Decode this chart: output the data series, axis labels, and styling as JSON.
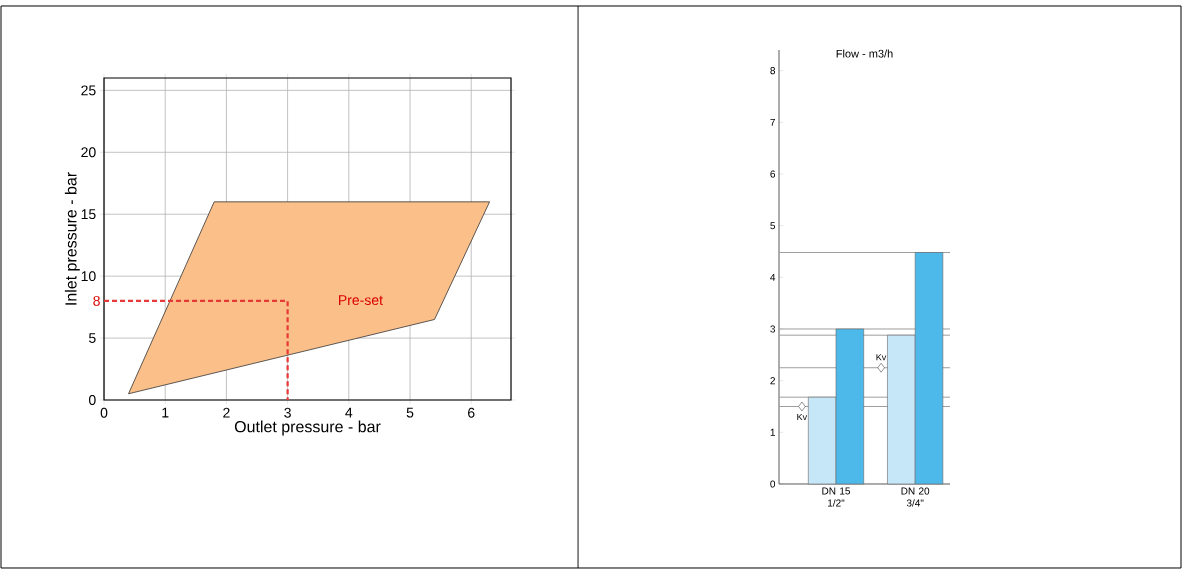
{
  "chart_data": [
    {
      "type": "area",
      "xlabel": "Outlet pressure - bar",
      "ylabel": "Inlet pressure - bar",
      "xlim": [
        0,
        6.65
      ],
      "ylim": [
        0,
        26
      ],
      "xticks": [
        0,
        1,
        2,
        3,
        4,
        5,
        6
      ],
      "yticks": [
        0,
        5,
        10,
        15,
        20,
        25
      ],
      "grid": true,
      "series": [
        {
          "type": "area",
          "color": "#fbbf8a",
          "x": [
            0.4,
            1.8,
            6.3,
            5.4
          ],
          "values": [
            0.5,
            16,
            16,
            6.5
          ]
        },
        {
          "type": "line",
          "color": "#e53935",
          "line_style": "dashed",
          "x": [
            0,
            3,
            3
          ],
          "values": [
            8,
            8,
            0
          ]
        }
      ],
      "annotations": [
        {
          "text": "8",
          "x": 0,
          "y": 8
        },
        "Pre-set"
      ]
    },
    {
      "type": "bar",
      "title": "Flow - m3/h",
      "categories": [
        "DN 15 1/2\"",
        "DN 20 3/4\""
      ],
      "ylim": [
        0,
        8.4
      ],
      "yticks": [
        0,
        1,
        2,
        3,
        4,
        5,
        6,
        7,
        8
      ],
      "series": [
        {
          "color": "#c6e7f8",
          "values": [
            1.68,
            2.88
          ]
        },
        {
          "color": "#4db9eb",
          "values": [
            3.0,
            4.48
          ]
        },
        {
          "type": "scatter",
          "name": "Kv",
          "color": "#ffffff",
          "marker": "diamond",
          "values": [
            1.5,
            2.25
          ]
        }
      ],
      "ref_lines": [
        {
          "axis": "y",
          "value": 1.5,
          "color": "#9e9e9e"
        },
        {
          "axis": "y",
          "value": 1.68,
          "color": "#9e9e9e"
        },
        {
          "axis": "y",
          "value": 2.25,
          "color": "#9e9e9e"
        },
        {
          "axis": "y",
          "value": 2.88,
          "color": "#9e9e9e"
        },
        {
          "axis": "y",
          "value": 3.0,
          "color": "#9e9e9e"
        },
        {
          "axis": "y",
          "value": 4.48,
          "color": "#9e9e9e"
        }
      ]
    }
  ]
}
